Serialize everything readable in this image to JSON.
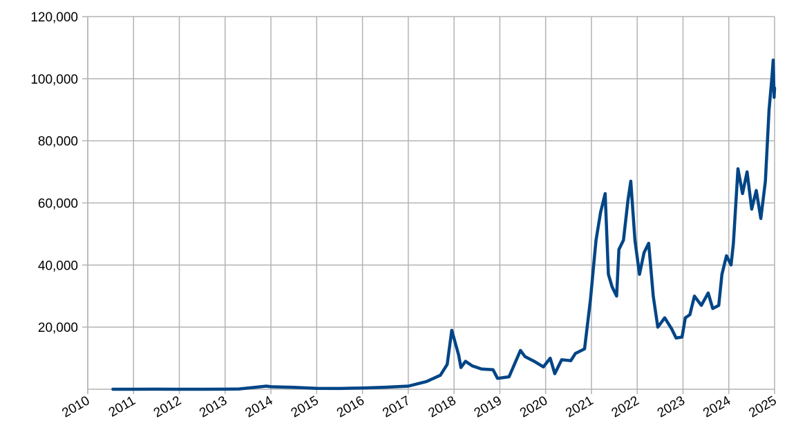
{
  "chart_data": {
    "type": "line",
    "x": [
      2010.55,
      2011.0,
      2011.45,
      2012.0,
      2012.5,
      2013.0,
      2013.3,
      2013.9,
      2014.0,
      2014.5,
      2015.0,
      2015.5,
      2016.0,
      2016.5,
      2017.0,
      2017.4,
      2017.7,
      2017.85,
      2017.95,
      2018.1,
      2018.15,
      2018.25,
      2018.4,
      2018.6,
      2018.85,
      2018.95,
      2019.2,
      2019.45,
      2019.55,
      2019.75,
      2019.95,
      2020.1,
      2020.2,
      2020.35,
      2020.55,
      2020.65,
      2020.85,
      2020.98,
      2021.05,
      2021.1,
      2021.2,
      2021.3,
      2021.37,
      2021.45,
      2021.55,
      2021.6,
      2021.7,
      2021.8,
      2021.86,
      2021.95,
      2022.05,
      2022.15,
      2022.25,
      2022.35,
      2022.45,
      2022.6,
      2022.75,
      2022.85,
      2022.98,
      2023.05,
      2023.15,
      2023.25,
      2023.4,
      2023.55,
      2023.65,
      2023.78,
      2023.85,
      2023.95,
      2024.05,
      2024.1,
      2024.2,
      2024.3,
      2024.4,
      2024.5,
      2024.6,
      2024.7,
      2024.8,
      2024.88,
      2024.94,
      2024.97,
      2024.99,
      2025.0
    ],
    "series": [
      {
        "color": "#004586",
        "values": [
          0,
          1,
          15,
          5,
          10,
          15,
          100,
          1000,
          800,
          600,
          300,
          250,
          400,
          650,
          1000,
          2500,
          4500,
          8000,
          19000,
          11000,
          7000,
          9000,
          7500,
          6500,
          6300,
          3500,
          4000,
          12500,
          10500,
          9000,
          7200,
          10000,
          5000,
          9500,
          9200,
          11500,
          13000,
          29000,
          40000,
          48000,
          57000,
          63000,
          37000,
          33000,
          30000,
          45000,
          48000,
          61000,
          67000,
          48000,
          37000,
          44000,
          47000,
          30000,
          20000,
          23000,
          19500,
          16500,
          16800,
          23000,
          24000,
          30000,
          27000,
          31000,
          26000,
          27000,
          37000,
          43000,
          40000,
          47000,
          71000,
          63000,
          70000,
          58000,
          64000,
          55000,
          67000,
          90000,
          100000,
          106000,
          94000,
          97000
        ]
      }
    ],
    "xlim": [
      2010,
      2025
    ],
    "xticks": [
      2010,
      2011,
      2012,
      2013,
      2014,
      2015,
      2016,
      2017,
      2018,
      2019,
      2020,
      2021,
      2022,
      2023,
      2024,
      2025
    ],
    "ylim": [
      0,
      120000
    ],
    "yticks": [
      {
        "value": 20000,
        "label": "20,000"
      },
      {
        "value": 40000,
        "label": "40,000"
      },
      {
        "value": 60000,
        "label": "60,000"
      },
      {
        "value": 80000,
        "label": "80,000"
      },
      {
        "value": 100000,
        "label": "100,000"
      },
      {
        "value": 120000,
        "label": "120,000"
      }
    ],
    "grid": true
  }
}
